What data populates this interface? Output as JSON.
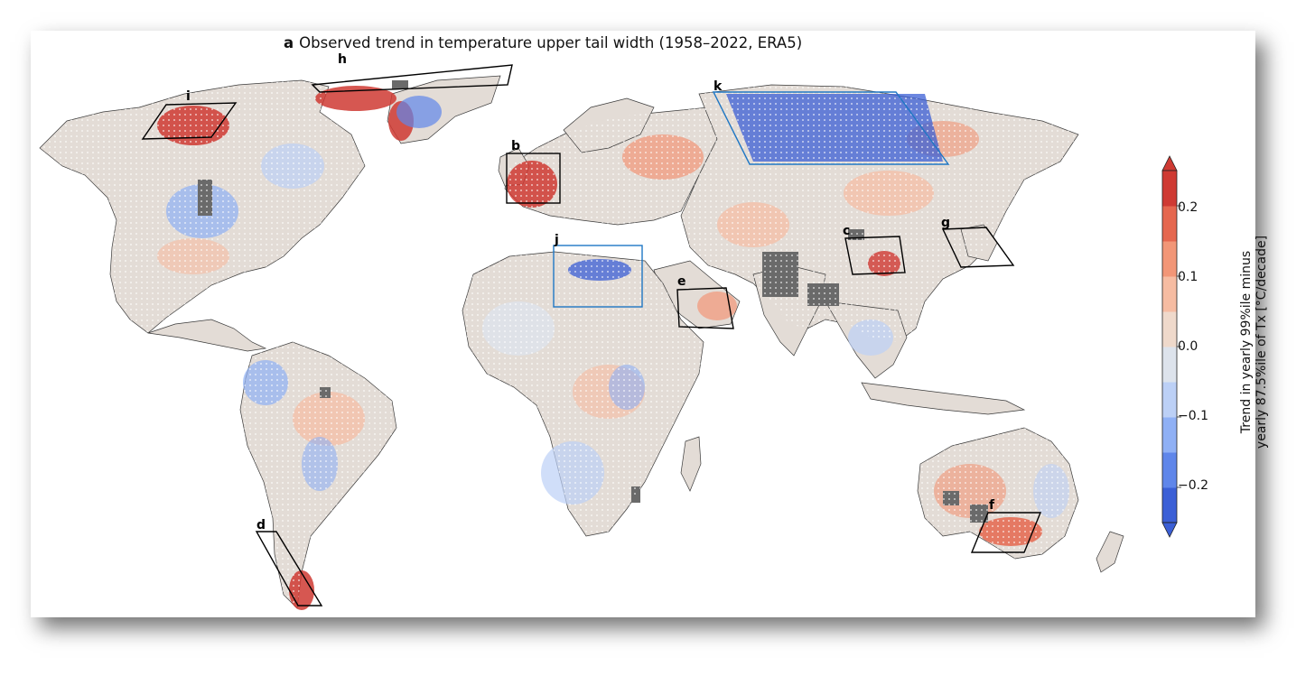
{
  "title": {
    "panel": "a",
    "text": "Observed trend in temperature upper tail width (1958–2022, ERA5)"
  },
  "colorbar": {
    "label_line1": "Trend in yearly 99%ile minus",
    "label_line2": "yearly 87.5%ile of Tx [°C/decade]",
    "ticks": [
      "0.2",
      "0.1",
      "0.0",
      "−0.1",
      "−0.2"
    ],
    "tick_values": [
      0.2,
      0.1,
      0.0,
      -0.1,
      -0.2
    ],
    "range": [
      -0.25,
      0.25
    ],
    "colors": [
      "#3b5fd6",
      "#5f86ea",
      "#8fb0f5",
      "#bcd0f6",
      "#dde3ec",
      "#efd9cb",
      "#f6bca2",
      "#f29677",
      "#e5674f",
      "#cf3a33"
    ]
  },
  "regions": [
    {
      "id": "h",
      "color": "#000000"
    },
    {
      "id": "i",
      "color": "#000000"
    },
    {
      "id": "b",
      "color": "#000000"
    },
    {
      "id": "k",
      "color": "#1f77c4"
    },
    {
      "id": "j",
      "color": "#1f77c4"
    },
    {
      "id": "c",
      "color": "#000000"
    },
    {
      "id": "g",
      "color": "#000000"
    },
    {
      "id": "e",
      "color": "#000000"
    },
    {
      "id": "d",
      "color": "#000000"
    },
    {
      "id": "f",
      "color": "#000000"
    }
  ]
}
